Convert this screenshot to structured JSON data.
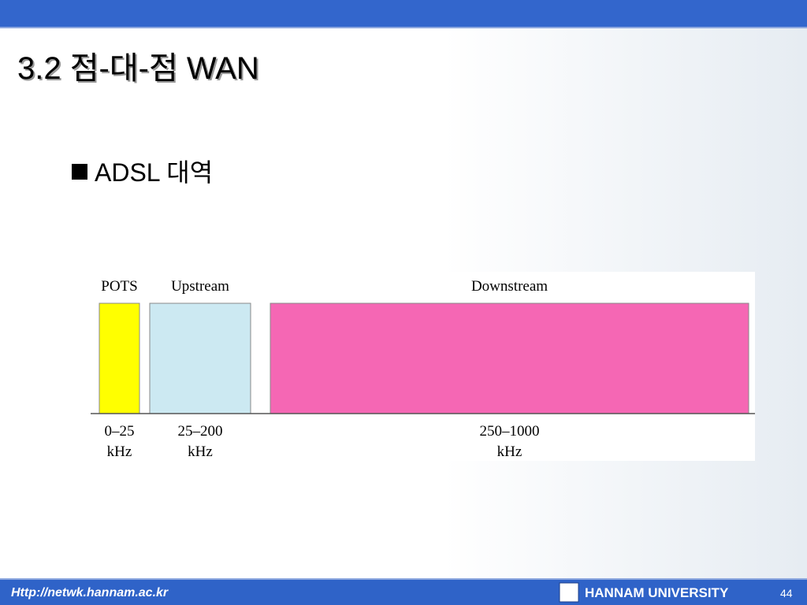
{
  "header": {
    "title": "3.2 점-대-점 WAN"
  },
  "bullet": "ADSL 대역",
  "bands": [
    {
      "name": "POTS",
      "range": "0–25",
      "unit": "kHz",
      "color": "#ffff00"
    },
    {
      "name": "Upstream",
      "range": "25–200",
      "unit": "kHz",
      "color": "#cce9f2"
    },
    {
      "name": "Downstream",
      "range": "250–1000",
      "unit": "kHz",
      "color": "#f567b4"
    }
  ],
  "footer": {
    "url": "Http://netwk.hannam.ac.kr",
    "university": "HANNAM UNIVERSITY",
    "page": "44"
  }
}
